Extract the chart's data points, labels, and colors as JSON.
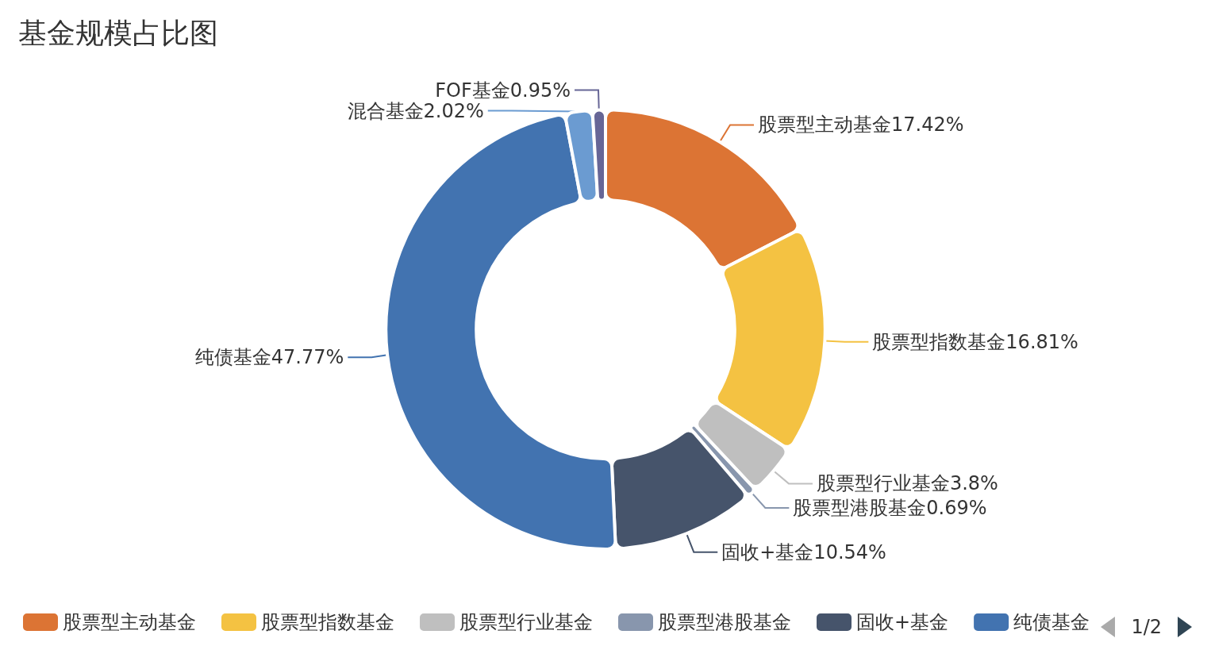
{
  "chart_data": {
    "type": "donut",
    "title": "基金规模占比图",
    "categories": [
      "股票型主动基金",
      "股票型指数基金",
      "股票型行业基金",
      "股票型港股基金",
      "固收+基金",
      "纯债基金",
      "混合基金",
      "FOF基金"
    ],
    "values": [
      17.42,
      16.81,
      3.8,
      0.69,
      10.54,
      47.77,
      2.02,
      0.95
    ],
    "value_labels": [
      "17.42%",
      "16.81%",
      "3.8%",
      "0.69%",
      "10.54%",
      "47.77%",
      "2.02%",
      "0.95%"
    ],
    "colors": [
      "#dc7434",
      "#f4c242",
      "#bfbfbf",
      "#8896ad",
      "#46546b",
      "#4273b0",
      "#6b9bd1",
      "#676696"
    ],
    "legend": "bottom",
    "annotations": [
      "1/2"
    ]
  }
}
